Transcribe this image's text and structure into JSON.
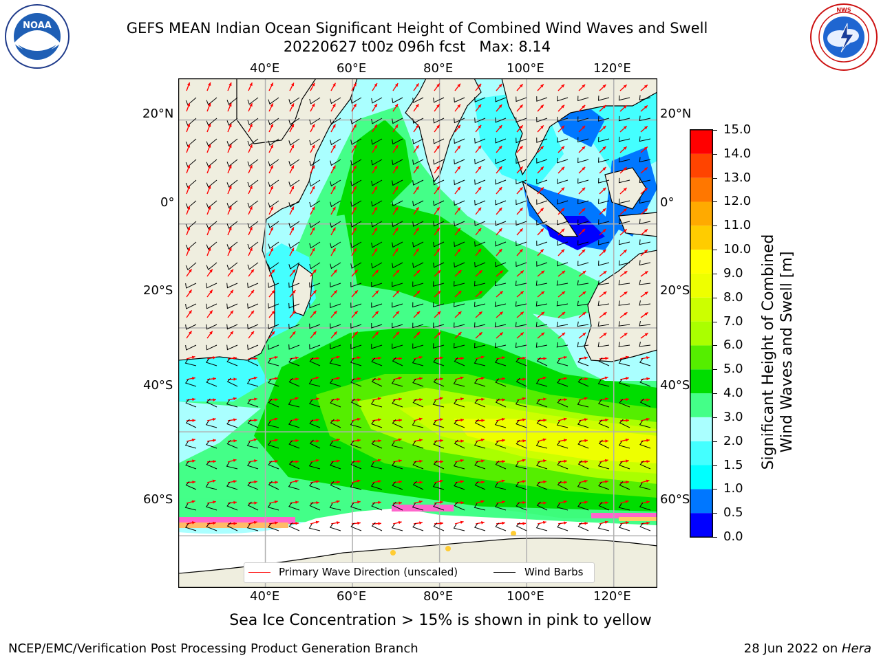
{
  "title": {
    "line1": "GEFS MEAN Indian Ocean Significant Height of Combined Wind Waves and Swell",
    "line2": "20220627 t00z 096h fcst   Max: 8.14"
  },
  "logos": {
    "left_text": "NOAA",
    "left_ring": "NATIONAL OCEANIC AND ATMOSPHERIC ADMINISTRATION · U.S. DEPARTMENT OF COMMERCE",
    "right_ring": "NATIONAL WEATHER SERVICE"
  },
  "map": {
    "lon_range": [
      20,
      130
    ],
    "lat_range": [
      -70,
      28
    ],
    "lon_ticks": [
      "40°E",
      "60°E",
      "80°E",
      "100°E",
      "120°E"
    ],
    "lat_ticks_left": [
      "20°N",
      "0°",
      "20°S",
      "40°S",
      "60°S"
    ],
    "lat_ticks_right": [
      "20°N",
      "0°",
      "20°S",
      "40°S",
      "60°S"
    ],
    "grid": true,
    "land_color": "#efeedf",
    "sea_ice_color": "#ff66cc"
  },
  "legend": {
    "wave_label": "Primary Wave Direction (unscaled)",
    "wind_label": "Wind Barbs",
    "wave_color": "#ff0000",
    "wind_color": "#000000",
    "placement": "bottom-center"
  },
  "colorbar": {
    "label_line1": "Significant Height of Combined",
    "label_line2": "Wind Waves and Swell [m]",
    "ticks": [
      "0.0",
      "0.5",
      "1.0",
      "1.5",
      "2.0",
      "3.0",
      "4.0",
      "5.0",
      "6.0",
      "7.0",
      "8.0",
      "9.0",
      "10.0",
      "11.0",
      "12.0",
      "13.0",
      "14.0",
      "15.0"
    ],
    "colors": [
      "#0000ff",
      "#0077ff",
      "#00ffff",
      "#44ffff",
      "#aaffff",
      "#44ff88",
      "#00dd00",
      "#55ee00",
      "#aaff00",
      "#ccff00",
      "#eeff00",
      "#ffff00",
      "#ffcc00",
      "#ffaa00",
      "#ff7700",
      "#ff4400",
      "#ff0000"
    ]
  },
  "annotation": "Sea Ice Concentration > 15% is shown in pink to yellow",
  "footer": {
    "left": "NCEP/EMC/Verification Post Processing Product Generation Branch",
    "right_date": "28 Jun 2022 on ",
    "right_host": "Hera"
  }
}
